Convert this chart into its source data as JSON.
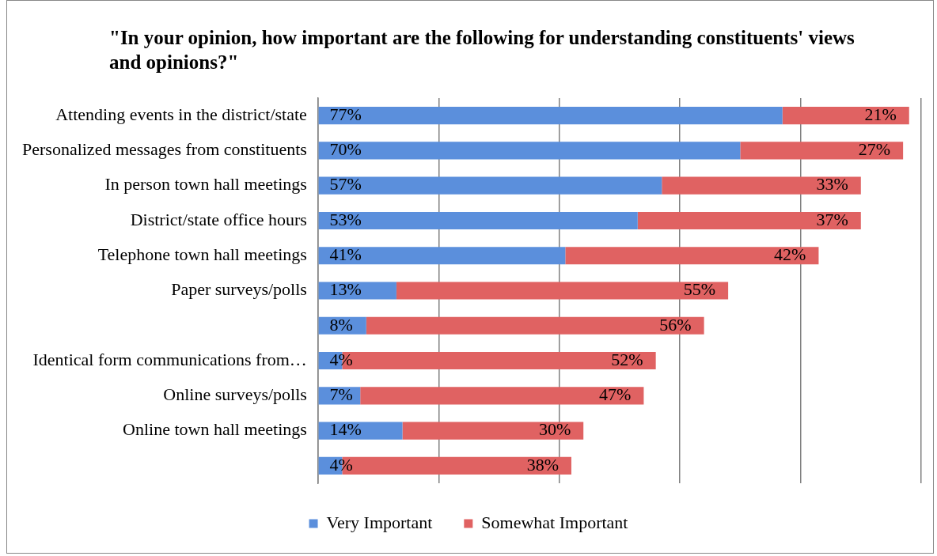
{
  "chart_data": {
    "type": "bar",
    "orientation": "horizontal",
    "stacked": true,
    "title": "\"In your opinion, how important are the following for understanding constituents' views and opinions?\"",
    "categories": [
      "Attending events in the district/state",
      "Personalized messages from constituents",
      "In person town hall meetings",
      "District/state office hours",
      "Telephone town hall meetings",
      "Paper surveys/polls",
      null,
      "Identical form communications from…",
      "Online surveys/polls",
      "Online town hall meetings",
      null
    ],
    "series": [
      {
        "name": "Very Important",
        "color": "#5b8fdc",
        "values": [
          77,
          70,
          57,
          53,
          41,
          13,
          8,
          4,
          7,
          14,
          4
        ],
        "value_labels": [
          "77%",
          "70%",
          "57%",
          "53%",
          "41%",
          "13%",
          "8%",
          "4%",
          "7%",
          "14%",
          "4%"
        ]
      },
      {
        "name": "Somewhat Important",
        "color": "#e06262",
        "values": [
          21,
          27,
          33,
          37,
          42,
          55,
          56,
          52,
          47,
          30,
          38
        ],
        "value_labels": [
          "21%",
          "27%",
          "33%",
          "37%",
          "42%",
          "55%",
          "56%",
          "52%",
          "47%",
          "30%",
          "38%"
        ]
      }
    ],
    "xlim": [
      0,
      100
    ],
    "xticks": [
      {
        "value": 0,
        "label": null
      },
      {
        "value": 20,
        "label": null
      },
      {
        "value": 40,
        "label": null
      },
      {
        "value": 60,
        "label": null
      },
      {
        "value": 80,
        "label": null
      },
      {
        "value": 100,
        "label": null
      }
    ],
    "grid": "x",
    "legend": "bottom",
    "tick_labels": "y"
  }
}
